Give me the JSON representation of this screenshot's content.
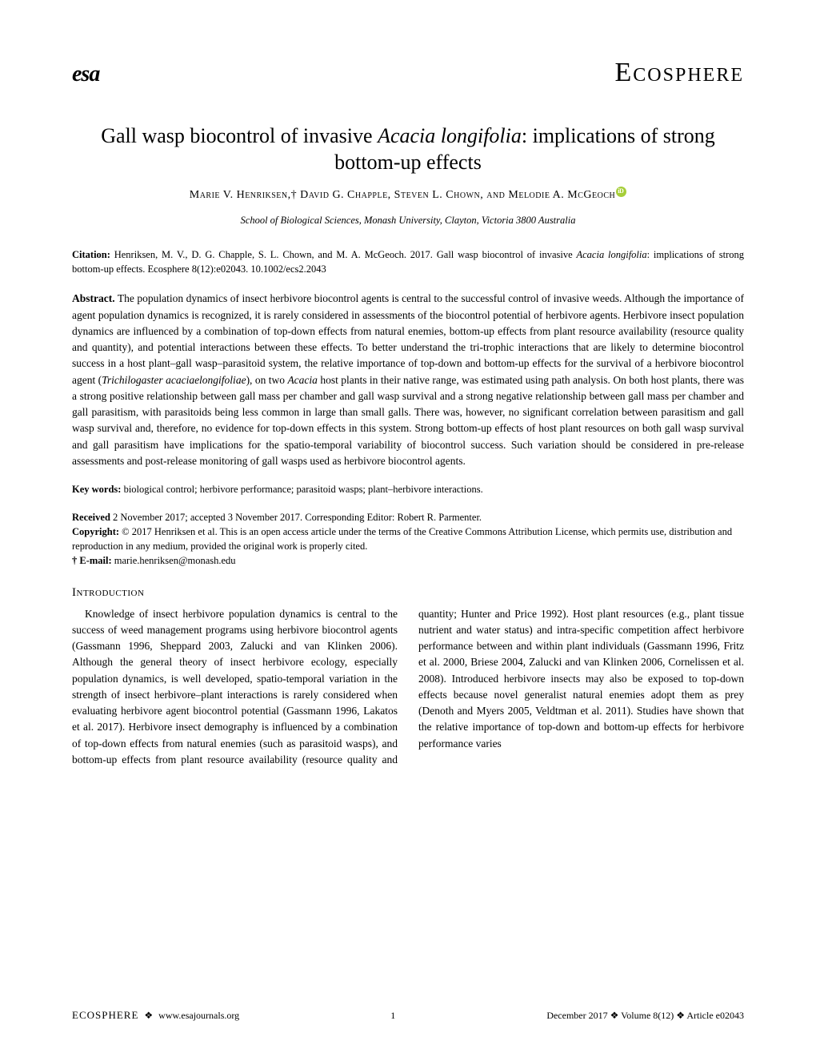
{
  "header": {
    "logo": "esa",
    "journal": "Ecosphere"
  },
  "title": {
    "pre": "Gall wasp biocontrol of invasive ",
    "italic": "Acacia longifolia",
    "post": ": implications of strong bottom-up effects"
  },
  "authors": "Marie V. Henriksen,† David G. Chapple, Steven L. Chown, and Melodie A. McGeoch",
  "affiliation": "School of Biological Sciences, Monash University, Clayton, Victoria 3800 Australia",
  "citation": {
    "label": "Citation:",
    "text_pre": " Henriksen, M. V., D. G. Chapple, S. L. Chown, and M. A. McGeoch. 2017. Gall wasp biocontrol of invasive ",
    "italic": "Acacia longifolia",
    "text_post": ": implications of strong bottom-up effects. Ecosphere 8(12):e02043. 10.1002/ecs2.2043"
  },
  "abstract": {
    "label": "Abstract.",
    "body_pre": "   The population dynamics of insect herbivore biocontrol agents is central to the successful control of invasive weeds. Although the importance of agent population dynamics is recognized, it is rarely considered in assessments of the biocontrol potential of herbivore agents. Herbivore insect population dynamics are influenced by a combination of top-down effects from natural enemies, bottom-up effects from plant resource availability (resource quality and quantity), and potential interactions between these effects. To better understand the tri-trophic interactions that are likely to determine biocontrol success in a host plant–gall wasp–parasitoid system, the relative importance of top-down and bottom-up effects for the survival of a herbivore biocontrol agent (",
    "italic1": "Trichilogaster acaciaelongifoliae",
    "body_mid": "), on two ",
    "italic2": "Acacia",
    "body_post": " host plants in their native range, was estimated using path analysis. On both host plants, there was a strong positive relationship between gall mass per chamber and gall wasp survival and a strong negative relationship between gall mass per chamber and gall parasitism, with parasitoids being less common in large than small galls. There was, however, no significant correlation between parasitism and gall wasp survival and, therefore, no evidence for top-down effects in this system. Strong bottom-up effects of host plant resources on both gall wasp survival and gall parasitism have implications for the spatio-temporal variability of biocontrol success. Such variation should be considered in pre-release assessments and post-release monitoring of gall wasps used as herbivore biocontrol agents."
  },
  "keywords": {
    "label": "Key words:",
    "text": "   biological control; herbivore performance; parasitoid wasps; plant–herbivore interactions."
  },
  "meta": {
    "received_label": "Received",
    "received": " 2 November 2017; accepted 3 November 2017. Corresponding Editor: Robert R. Parmenter.",
    "copyright_label": "Copyright:",
    "copyright": " © 2017 Henriksen et al. This is an open access article under the terms of the Creative Commons Attribution License, which permits use, distribution and reproduction in any medium, provided the original work is properly cited.",
    "email_label": "† E-mail:",
    "email": "  marie.henriksen@monash.edu"
  },
  "introduction": {
    "heading": "Introduction",
    "body": "Knowledge of insect herbivore population dynamics is central to the success of weed management programs using herbivore biocontrol agents (Gassmann 1996, Sheppard 2003, Zalucki and van Klinken 2006). Although the general theory of insect herbivore ecology, especially population dynamics, is well developed, spatio-temporal variation in the strength of insect herbivore–plant interactions is rarely considered when evaluating herbivore agent biocontrol potential (Gassmann 1996, Lakatos et al. 2017). Herbivore insect demography is influenced by a combination of top-down effects from natural enemies (such as parasitoid wasps), and bottom-up effects from plant resource availability (resource quality and quantity; Hunter and Price 1992). Host plant resources (e.g., plant tissue nutrient and water status) and intra-specific competition affect herbivore performance between and within plant individuals (Gassmann 1996, Fritz et al. 2000, Briese 2004, Zalucki and van Klinken 2006, Cornelissen et al. 2008). Introduced herbivore insects may also be exposed to top-down effects because novel generalist natural enemies adopt them as prey (Denoth and Myers 2005, Veldtman et al. 2011). Studies have shown that the relative importance of top-down and bottom-up effects for herbivore performance varies"
  },
  "footer": {
    "left_brand": "ECOSPHERE",
    "left_url": "www.esajournals.org",
    "page": "1",
    "right": "December 2017   ❖   Volume 8(12)   ❖   Article e02043"
  },
  "colors": {
    "background": "#ffffff",
    "text": "#000000",
    "orcid": "#a6ce39"
  }
}
